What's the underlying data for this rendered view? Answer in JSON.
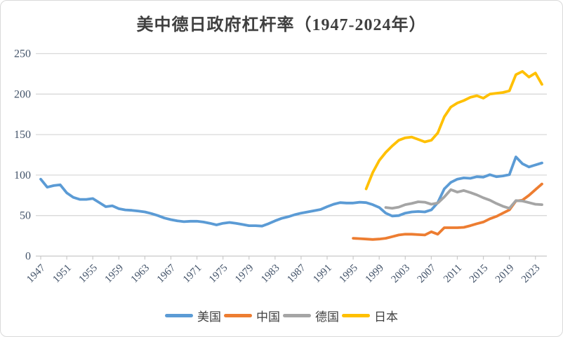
{
  "chart": {
    "styles": {
      "grid_color": "#d9d9d9",
      "axis_color": "#c9c9c9",
      "axis_label_color": "#44546a",
      "title_color": "#3f3f3f",
      "legend_text_color": "#404040",
      "background": "#ffffff",
      "border_color": "#d9d9d9"
    }
  },
  "chart_data": {
    "type": "line",
    "title": "美中德日政府杠杆率（1947-2024年）",
    "xlabel": "",
    "ylabel": "",
    "ylim": [
      0,
      250
    ],
    "y_ticks": [
      0,
      50,
      100,
      150,
      200,
      250
    ],
    "x_start": 1947,
    "x_end": 2024,
    "x_tick_years": [
      1947,
      1951,
      1955,
      1959,
      1963,
      1967,
      1971,
      1975,
      1979,
      1983,
      1987,
      1991,
      1995,
      1999,
      2003,
      2007,
      2011,
      2015,
      2019,
      2023
    ],
    "grid": "horizontal",
    "legend_position": "bottom",
    "series": [
      {
        "id": "us",
        "name": "美国",
        "color": "#5B9BD5",
        "start_year": 1947,
        "values": [
          95,
          85,
          87,
          88,
          78,
          72.5,
          70,
          70,
          71,
          66,
          61,
          62,
          58.5,
          57,
          56.5,
          55.5,
          54.5,
          52.5,
          50,
          47,
          45,
          43.5,
          42.5,
          43,
          43,
          42,
          40.5,
          38.5,
          40.5,
          41.5,
          40.5,
          39,
          37.5,
          37.5,
          37,
          40,
          43.5,
          46.5,
          48.5,
          51,
          53,
          54.5,
          56,
          57.5,
          61,
          64,
          66,
          65.5,
          65.5,
          66.5,
          66,
          63.5,
          60,
          53,
          49.5,
          50,
          53,
          54.5,
          55,
          54.5,
          57,
          66,
          83,
          91,
          95,
          96.5,
          96,
          98,
          97.5,
          100.5,
          98,
          99,
          100.5,
          122.5,
          114,
          110,
          112.5,
          115
        ]
      },
      {
        "id": "china",
        "name": "中国",
        "color": "#ED7D31",
        "start_year": 1995,
        "values": [
          22,
          21.5,
          21,
          20.5,
          21,
          22,
          24,
          26,
          27,
          27,
          26.5,
          26,
          30,
          27,
          35,
          35,
          35,
          35.5,
          37.5,
          40,
          42,
          46,
          49,
          53,
          57,
          68,
          69,
          75,
          82,
          89
        ]
      },
      {
        "id": "germany",
        "name": "德国",
        "color": "#A5A5A5",
        "start_year": 2000,
        "values": [
          60,
          59,
          60.5,
          63.5,
          65,
          67,
          66.5,
          64,
          65.5,
          73,
          82,
          79,
          81,
          78.5,
          75.5,
          72,
          69,
          65,
          61.5,
          59,
          68.5,
          68,
          66,
          64,
          63.5
        ]
      },
      {
        "id": "japan",
        "name": "日本",
        "color": "#FFC000",
        "start_year": 1997,
        "values": [
          83,
          103,
          118,
          128,
          136,
          143,
          146,
          147,
          144,
          141,
          143,
          152,
          172,
          184,
          189,
          192,
          196,
          198,
          195,
          200,
          201,
          202,
          204,
          224,
          228,
          221,
          226,
          212
        ]
      }
    ]
  }
}
